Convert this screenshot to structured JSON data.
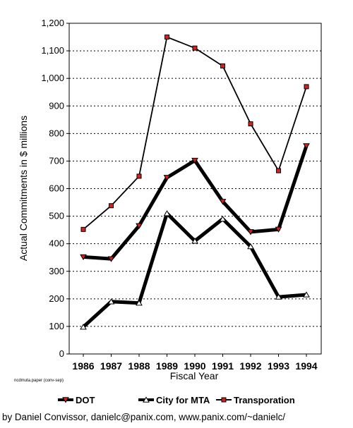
{
  "chart_data": {
    "type": "line",
    "title": "",
    "xlabel": "Fiscal Year",
    "ylabel": "Actual Commitments in $ millions",
    "note": "ncdmuta.paper (conv-sep)",
    "categories": [
      "1986",
      "1987",
      "1988",
      "1989",
      "1990",
      "1991",
      "1992",
      "1993",
      "1994"
    ],
    "ylim": [
      0,
      1200
    ],
    "yticks": [
      "0",
      "100",
      "200",
      "300",
      "400",
      "500",
      "600",
      "700",
      "800",
      "900",
      "1,000",
      "1,100",
      "1,200"
    ],
    "grid": "horizontal dotted",
    "legend_position": "bottom",
    "series": [
      {
        "name": "DOT",
        "values": [
          352,
          345,
          465,
          640,
          702,
          553,
          443,
          452,
          755
        ],
        "marker": "triangle-down",
        "marker_color": "#d42020",
        "line_width": "thick"
      },
      {
        "name": "City for MTA",
        "values": [
          98,
          190,
          185,
          510,
          410,
          490,
          390,
          207,
          215
        ],
        "marker": "triangle-up",
        "marker_color": "#ffffff",
        "line_width": "thick"
      },
      {
        "name": "Transporation",
        "values": [
          452,
          538,
          645,
          1150,
          1110,
          1045,
          835,
          665,
          970
        ],
        "marker": "square",
        "marker_color": "#d42020",
        "line_width": "thin"
      }
    ]
  },
  "credit": "by Daniel Convissor, danielc@panix.com, www.panix.com/~danielc/"
}
